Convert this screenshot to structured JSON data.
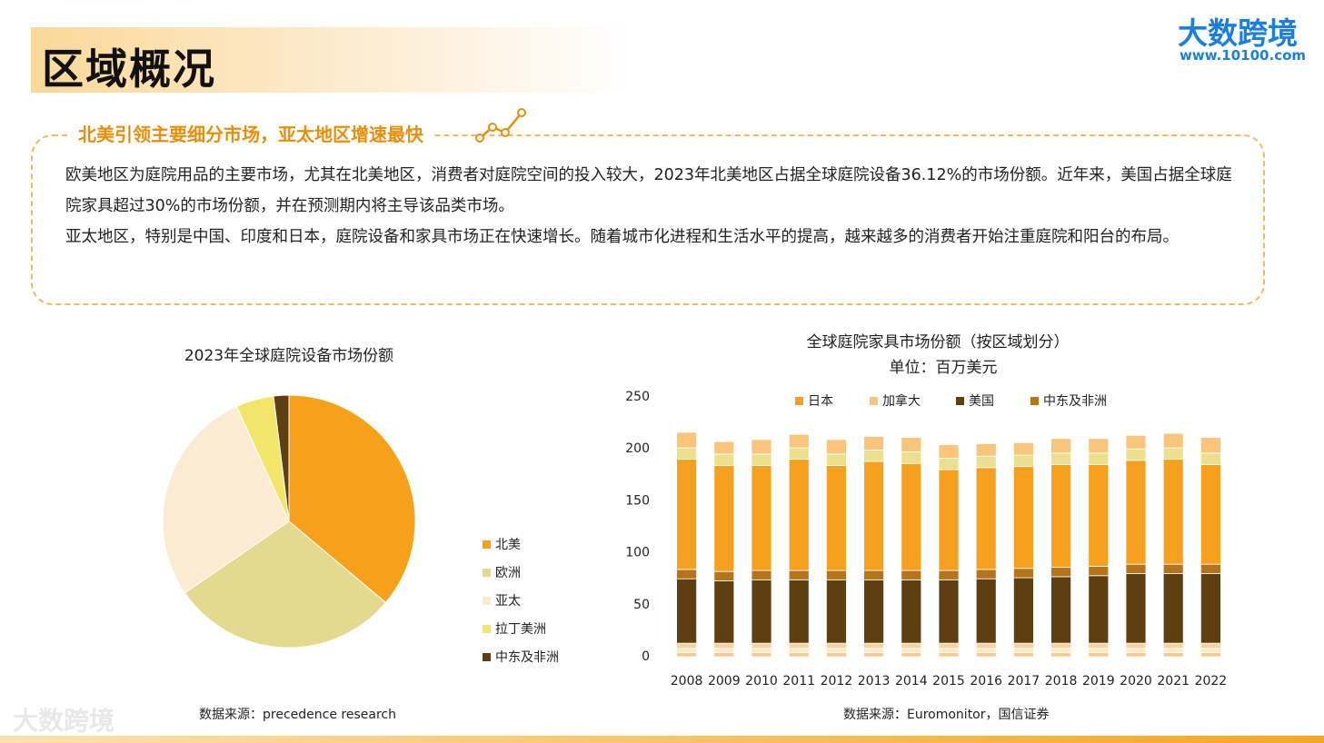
{
  "header": {
    "title": "区域概况",
    "logo": "大数跨境",
    "url": "www.10100.com"
  },
  "section": {
    "heading": "北美引领主要细分市场，亚太地区增速最快",
    "paragraphs": [
      "欧美地区为庭院用品的主要市场，尤其在北美地区，消费者对庭院空间的投入较大，2023年北美地区占据全球庭院设备36.12%的市场份额。近年来，美国占据全球庭院家具超过30%的市场份额，并在预测期内将主导该品类市场。",
      "亚太地区，特别是中国、印度和日本，庭院设备和家具市场正在快速增长。随着城市化进程和生活水平的提高，越来越多的消费者开始注重庭院和阳台的布局。"
    ]
  },
  "chart_data": [
    {
      "type": "pie",
      "title": "2023年全球庭院设备市场份额",
      "categories": [
        "北美",
        "欧洲",
        "亚太",
        "拉丁美洲",
        "中东及非洲"
      ],
      "values": [
        36.12,
        29.3,
        27.78,
        4.85,
        1.95
      ],
      "colors": [
        "#f7a11a",
        "#e3da8f",
        "#fcebd3",
        "#f3e46a",
        "#5e3f12"
      ],
      "source": "数据来源：precedence research"
    },
    {
      "type": "stacked-bar",
      "title": "全球庭院家具市场份额（按区域划分）",
      "subtitle": "单位：百万美元",
      "categories": [
        "2008",
        "2009",
        "2010",
        "2011",
        "2012",
        "2013",
        "2014",
        "2015",
        "2016",
        "2017",
        "2018",
        "2019",
        "2020",
        "2021",
        "2022"
      ],
      "ylim": [
        0,
        250
      ],
      "yticks": [
        0,
        50,
        100,
        150,
        200,
        250
      ],
      "grid": false,
      "series": [
        {
          "color": "#f8c98a",
          "values": [
            4,
            4,
            4,
            4,
            4,
            4,
            4,
            4,
            4,
            4,
            4,
            4,
            4,
            4,
            4
          ]
        },
        {
          "color": "#fde8c9",
          "values": [
            4,
            4,
            4,
            4,
            4,
            4,
            4,
            4,
            4,
            4,
            4,
            4,
            4,
            4,
            4
          ]
        },
        {
          "color": "#f9d39e",
          "values": [
            5,
            5,
            5,
            5,
            5,
            5,
            5,
            5,
            5,
            5,
            5,
            5,
            5,
            5,
            5
          ]
        },
        {
          "name": "美国",
          "color": "#5e3f12",
          "values": [
            62,
            60,
            61,
            61,
            61,
            61,
            61,
            61,
            62,
            63,
            64,
            65,
            67,
            67,
            67
          ]
        },
        {
          "name": "中东及非洲",
          "color": "#b5731b",
          "values": [
            9,
            9,
            9,
            9,
            9,
            9,
            9,
            9,
            9,
            9,
            9,
            9,
            9,
            9,
            9
          ]
        },
        {
          "name": "日本",
          "color": "#f5a11f",
          "values": [
            106,
            102,
            101,
            107,
            101,
            105,
            103,
            97,
            98,
            98,
            99,
            98,
            100,
            101,
            96
          ]
        },
        {
          "color": "#ece08e",
          "values": [
            11,
            11,
            11,
            11,
            11,
            11,
            11,
            11,
            11,
            11,
            11,
            11,
            11,
            11,
            11
          ]
        },
        {
          "name": "加拿大",
          "color": "#f8c57a",
          "values": [
            15,
            12,
            14,
            13,
            14,
            13,
            14,
            13,
            12,
            12,
            14,
            14,
            13,
            14,
            15
          ]
        }
      ],
      "legend_order": [
        5,
        7,
        3,
        4
      ],
      "source": "数据来源：Euromonitor，国信证券"
    }
  ],
  "footer": {
    "watermark": "大数跨境"
  }
}
